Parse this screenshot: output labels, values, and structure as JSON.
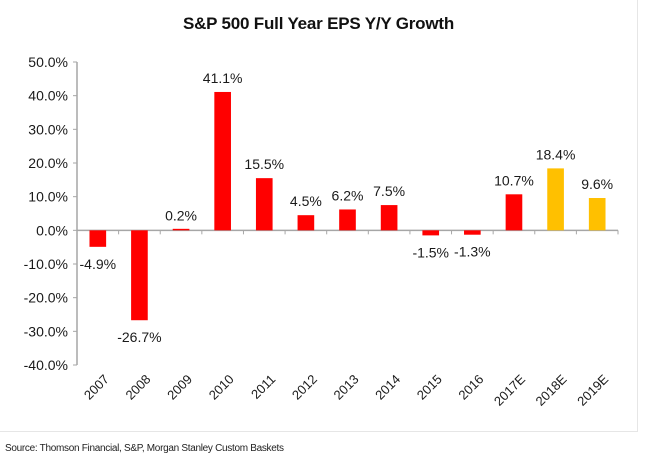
{
  "chart_data": {
    "type": "bar",
    "title": "S&P 500 Full Year EPS Y/Y Growth",
    "xlabel": "",
    "ylabel": "",
    "categories": [
      "2007",
      "2008",
      "2009",
      "2010",
      "2011",
      "2012",
      "2013",
      "2014",
      "2015",
      "2016",
      "2017E",
      "2018E",
      "2019E"
    ],
    "values": [
      -4.9,
      -26.7,
      0.2,
      41.1,
      15.5,
      4.5,
      6.2,
      7.5,
      -1.5,
      -1.3,
      10.7,
      18.4,
      9.6
    ],
    "data_labels": [
      "-4.9%",
      "-26.7%",
      "0.2%",
      "41.1%",
      "15.5%",
      "4.5%",
      "6.2%",
      "7.5%",
      "-1.5%",
      "-1.3%",
      "10.7%",
      "18.4%",
      "9.6%"
    ],
    "bar_colors": [
      "#ff0000",
      "#ff0000",
      "#ff0000",
      "#ff0000",
      "#ff0000",
      "#ff0000",
      "#ff0000",
      "#ff0000",
      "#ff0000",
      "#ff0000",
      "#ff0000",
      "#ffc000",
      "#ffc000"
    ],
    "ylim": [
      -40,
      50
    ],
    "yticks": [
      50,
      40,
      30,
      20,
      10,
      0,
      -10,
      -20,
      -30,
      -40
    ],
    "ytick_labels": [
      "50.0%",
      "40.0%",
      "30.0%",
      "20.0%",
      "10.0%",
      "0.0%",
      "-10.0%",
      "-20.0%",
      "-30.0%",
      "-40.0%"
    ],
    "grid": false,
    "legend": "none"
  },
  "footer": {
    "source": "Source: Thomson Financial, S&P, Morgan Stanley Custom Baskets"
  },
  "colors": {
    "actual": "#ff0000",
    "estimate": "#ffc000",
    "axis": "#a6a6a6"
  }
}
